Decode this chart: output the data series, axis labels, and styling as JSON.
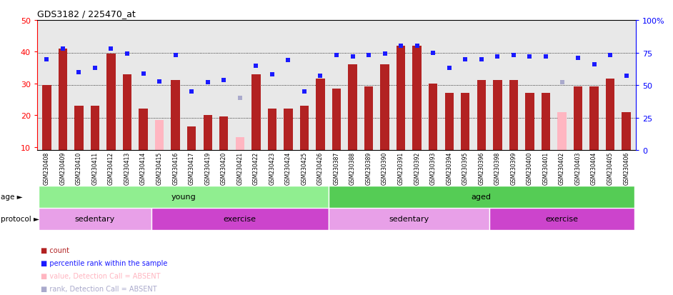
{
  "title": "GDS3182 / 225470_at",
  "samples": [
    "GSM230408",
    "GSM230409",
    "GSM230410",
    "GSM230411",
    "GSM230412",
    "GSM230413",
    "GSM230414",
    "GSM230415",
    "GSM230416",
    "GSM230417",
    "GSM230419",
    "GSM230420",
    "GSM230421",
    "GSM230422",
    "GSM230423",
    "GSM230424",
    "GSM230425",
    "GSM230426",
    "GSM230387",
    "GSM230388",
    "GSM230389",
    "GSM230390",
    "GSM230391",
    "GSM230392",
    "GSM230393",
    "GSM230394",
    "GSM230395",
    "GSM230396",
    "GSM230398",
    "GSM230399",
    "GSM230400",
    "GSM230401",
    "GSM230402",
    "GSM230403",
    "GSM230404",
    "GSM230405",
    "GSM230406"
  ],
  "bar_values": [
    29.5,
    41.0,
    23.0,
    23.0,
    39.5,
    33.0,
    22.0,
    null,
    31.0,
    16.5,
    20.0,
    19.5,
    null,
    33.0,
    22.0,
    22.0,
    23.0,
    31.5,
    28.5,
    36.0,
    29.0,
    36.0,
    42.0,
    42.0,
    30.0,
    27.0,
    27.0,
    31.0,
    31.0,
    31.0,
    27.0,
    27.0,
    null,
    29.0,
    29.0,
    31.5,
    21.0
  ],
  "bar_absent": [
    null,
    null,
    null,
    null,
    null,
    null,
    null,
    18.5,
    null,
    null,
    null,
    null,
    13.0,
    null,
    null,
    null,
    null,
    null,
    null,
    null,
    null,
    null,
    null,
    null,
    null,
    null,
    null,
    null,
    null,
    null,
    null,
    null,
    21.0,
    null,
    null,
    null,
    null
  ],
  "scatter_pct": [
    70,
    78,
    60,
    63,
    78,
    74,
    59,
    53,
    73,
    45,
    52,
    54,
    null,
    65,
    58,
    69,
    45,
    57,
    73,
    72,
    73,
    74,
    80,
    80,
    75,
    63,
    70,
    70,
    72,
    73,
    72,
    72,
    null,
    71,
    66,
    73,
    57
  ],
  "scatter_absent_pct": [
    null,
    null,
    null,
    null,
    null,
    null,
    null,
    null,
    null,
    null,
    null,
    null,
    40,
    null,
    null,
    null,
    null,
    null,
    null,
    null,
    null,
    null,
    null,
    null,
    null,
    null,
    null,
    null,
    null,
    null,
    null,
    null,
    52,
    null,
    null,
    null,
    null
  ],
  "ylim_left": [
    9,
    50
  ],
  "ylim_right": [
    0,
    100
  ],
  "yticks_left": [
    10,
    20,
    30,
    40,
    50
  ],
  "yticks_right": [
    0,
    25,
    50,
    75,
    100
  ],
  "bar_color": "#b22222",
  "bar_absent_color": "#ffb6c1",
  "scatter_color": "#1a1aff",
  "scatter_absent_color": "#aaaacc",
  "grid_pct": [
    25,
    50,
    75
  ],
  "bg_color": "#e8e8e8",
  "young_color": "#90ee90",
  "aged_color": "#55cc55",
  "sedentary_color": "#dd88dd",
  "exercise_color": "#cc44cc",
  "proto_segments": [
    {
      "start": 0,
      "end": 7,
      "label": "sedentary",
      "color": "#e8a0e8"
    },
    {
      "start": 7,
      "end": 18,
      "label": "exercise",
      "color": "#cc44cc"
    },
    {
      "start": 18,
      "end": 28,
      "label": "sedentary",
      "color": "#e8a0e8"
    },
    {
      "start": 28,
      "end": 37,
      "label": "exercise",
      "color": "#cc44cc"
    }
  ]
}
